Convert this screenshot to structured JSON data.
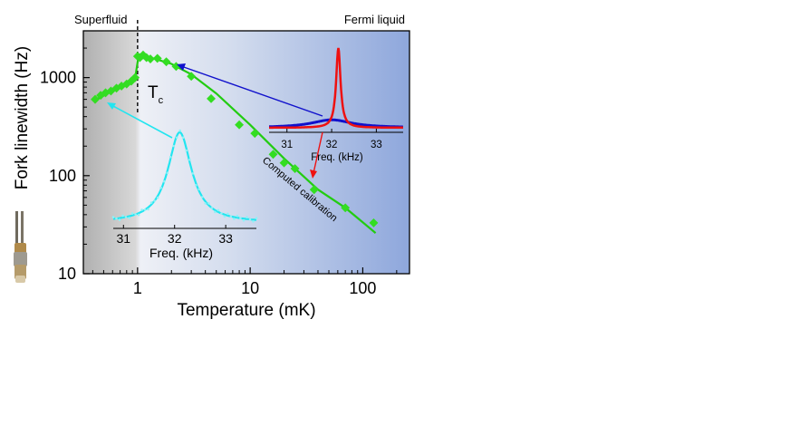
{
  "chart_data": {
    "type": "scatter",
    "xlabel": "Temperature (mK)",
    "ylabel": "Fork linewidth (Hz)",
    "x_scale": "log",
    "y_scale": "log",
    "xlim": [
      0.33,
      260
    ],
    "ylim": [
      10,
      3000
    ],
    "x_ticks": [
      "1",
      "10",
      "100"
    ],
    "y_ticks": [
      "10",
      "100",
      "1000"
    ],
    "region_labels": {
      "left": "Superfluid",
      "right": "Fermi liquid"
    },
    "transition_label": "T",
    "transition_subscript": "c",
    "transition_x": 1.0,
    "fit_label": "Computed calibration",
    "colors": {
      "data": "#33dd22",
      "fit": "#22cc11",
      "inset_left": "#22e5f0",
      "inset_red": "#ee1111",
      "inset_blue": "#1111cc",
      "bg_left": "#b5b5b5",
      "bg_mid": "#e2e8f4",
      "bg_right": "#8fa8dc"
    },
    "series": [
      {
        "points": [
          [
            0.42,
            600
          ],
          [
            0.47,
            660
          ],
          [
            0.52,
            700
          ],
          [
            0.58,
            730
          ],
          [
            0.65,
            780
          ],
          [
            0.72,
            820
          ],
          [
            0.8,
            860
          ],
          [
            0.88,
            920
          ],
          [
            0.95,
            1000
          ],
          [
            1.0,
            1650
          ],
          [
            1.05,
            1600
          ],
          [
            1.12,
            1700
          ],
          [
            1.2,
            1600
          ],
          [
            1.3,
            1550
          ],
          [
            1.5,
            1570
          ],
          [
            1.8,
            1450
          ],
          [
            2.2,
            1300
          ],
          [
            3.0,
            1030
          ],
          [
            4.5,
            610
          ],
          [
            8.0,
            330
          ],
          [
            11.0,
            270
          ],
          [
            16.0,
            165
          ],
          [
            20.0,
            135
          ],
          [
            25.0,
            118
          ],
          [
            37.0,
            72
          ],
          [
            70.0,
            47
          ],
          [
            125.0,
            33
          ]
        ]
      }
    ],
    "fit_curve": [
      [
        0.42,
        590
      ],
      [
        0.6,
        730
      ],
      [
        0.8,
        860
      ],
      [
        0.95,
        980
      ],
      [
        1.02,
        1650
      ],
      [
        1.3,
        1600
      ],
      [
        2.0,
        1380
      ],
      [
        3.0,
        1080
      ],
      [
        5.0,
        690
      ],
      [
        10.0,
        330
      ],
      [
        20.0,
        150
      ],
      [
        40.0,
        72
      ],
      [
        70.0,
        47
      ],
      [
        130.0,
        26
      ]
    ],
    "insets": [
      {
        "xlabel": "Freq. (kHz)",
        "x_ticks": [
          "31",
          "32",
          "33"
        ],
        "xlim": [
          30.8,
          33.6
        ],
        "series": [
          {
            "color": "cyan",
            "center": 32.1,
            "width": 0.28,
            "height": 1.0,
            "base": 0.0
          }
        ]
      },
      {
        "xlabel": "Freq. (kHz)",
        "x_ticks": [
          "31",
          "32",
          "33"
        ],
        "xlim": [
          30.6,
          33.6
        ],
        "series": [
          {
            "color": "red",
            "center": 32.15,
            "width": 0.06,
            "height": 1.0,
            "base": 0.0
          },
          {
            "color": "blue",
            "center": 32.0,
            "width": 0.55,
            "height": 0.1,
            "base": 0.0
          }
        ]
      }
    ]
  }
}
